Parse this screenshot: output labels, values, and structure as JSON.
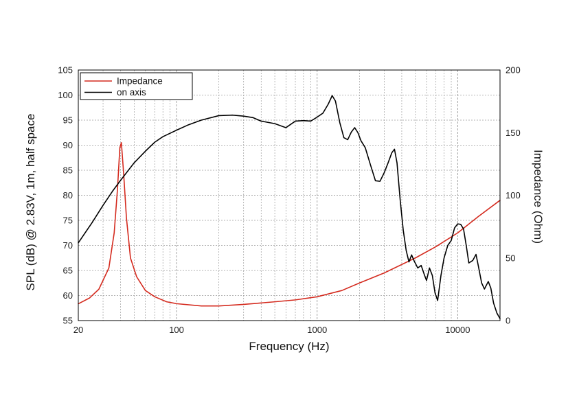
{
  "chart_data": {
    "type": "line",
    "xscale": "log",
    "xlim": [
      20,
      20000
    ],
    "ylim_left": [
      55,
      105
    ],
    "ylim_right": [
      0,
      200
    ],
    "xlabel": "Frequency (Hz)",
    "ylabel_left": "SPL (dB) @ 2.83V, 1m, half space",
    "ylabel_right": "Impedance (Ohm)",
    "x_ticks": [
      20,
      100,
      1000,
      10000
    ],
    "y_ticks_left": [
      55,
      60,
      65,
      70,
      75,
      80,
      85,
      90,
      95,
      100,
      105
    ],
    "y_ticks_right": [
      0,
      50,
      100,
      150,
      200
    ],
    "grid": true,
    "legend": {
      "position": "top-left"
    },
    "colors": {
      "impedance": "#d42a1e",
      "on_axis": "#000000",
      "grid": "#9a9a9a"
    },
    "series": [
      {
        "name": "Impedance",
        "axis": "right",
        "color": "#d42a1e",
        "points": [
          [
            20,
            13.4
          ],
          [
            24,
            18
          ],
          [
            28,
            25
          ],
          [
            33,
            42
          ],
          [
            36,
            70
          ],
          [
            38,
            105
          ],
          [
            39.5,
            138
          ],
          [
            40.5,
            142
          ],
          [
            42,
            118
          ],
          [
            44,
            82
          ],
          [
            47,
            50
          ],
          [
            52,
            35
          ],
          [
            60,
            24
          ],
          [
            70,
            19
          ],
          [
            85,
            15
          ],
          [
            100,
            13.5
          ],
          [
            150,
            11.7
          ],
          [
            200,
            11.7
          ],
          [
            300,
            12.9
          ],
          [
            500,
            15
          ],
          [
            700,
            16.5
          ],
          [
            1000,
            19
          ],
          [
            1500,
            24
          ],
          [
            2000,
            30
          ],
          [
            3000,
            38
          ],
          [
            5000,
            50
          ],
          [
            7000,
            59
          ],
          [
            10000,
            70
          ],
          [
            14000,
            83
          ],
          [
            20000,
            96
          ]
        ]
      },
      {
        "name": "on axis",
        "axis": "left",
        "color": "#000000",
        "points": [
          [
            20,
            70.5
          ],
          [
            25,
            74.5
          ],
          [
            30,
            78
          ],
          [
            35,
            80.8
          ],
          [
            40,
            83
          ],
          [
            50,
            86.5
          ],
          [
            60,
            88.8
          ],
          [
            70,
            90.6
          ],
          [
            80,
            91.7
          ],
          [
            100,
            93
          ],
          [
            120,
            94
          ],
          [
            150,
            95
          ],
          [
            200,
            95.9
          ],
          [
            250,
            96
          ],
          [
            300,
            95.8
          ],
          [
            350,
            95.5
          ],
          [
            400,
            94.8
          ],
          [
            500,
            94.3
          ],
          [
            600,
            93.5
          ],
          [
            700,
            94.8
          ],
          [
            800,
            94.9
          ],
          [
            900,
            94.8
          ],
          [
            1000,
            95.6
          ],
          [
            1100,
            96.4
          ],
          [
            1200,
            98.2
          ],
          [
            1280,
            99.9
          ],
          [
            1350,
            98.8
          ],
          [
            1450,
            94.5
          ],
          [
            1550,
            91.5
          ],
          [
            1650,
            91.1
          ],
          [
            1750,
            92.6
          ],
          [
            1850,
            93.5
          ],
          [
            1950,
            92.5
          ],
          [
            2050,
            90.9
          ],
          [
            2200,
            89.5
          ],
          [
            2400,
            86
          ],
          [
            2600,
            82.9
          ],
          [
            2800,
            82.8
          ],
          [
            3000,
            84.5
          ],
          [
            3200,
            86.5
          ],
          [
            3400,
            88.5
          ],
          [
            3550,
            89.2
          ],
          [
            3700,
            86.5
          ],
          [
            3900,
            79
          ],
          [
            4100,
            73
          ],
          [
            4300,
            69
          ],
          [
            4500,
            66.7
          ],
          [
            4700,
            68.1
          ],
          [
            4900,
            66.9
          ],
          [
            5200,
            65.5
          ],
          [
            5500,
            66
          ],
          [
            5800,
            64.1
          ],
          [
            6000,
            63
          ],
          [
            6300,
            65.5
          ],
          [
            6600,
            64
          ],
          [
            6900,
            60.5
          ],
          [
            7200,
            59
          ],
          [
            7600,
            64
          ],
          [
            8000,
            67.5
          ],
          [
            8500,
            70
          ],
          [
            9000,
            71
          ],
          [
            9500,
            73.5
          ],
          [
            10000,
            74.3
          ],
          [
            10500,
            74.2
          ],
          [
            11000,
            73.3
          ],
          [
            11500,
            70
          ],
          [
            12000,
            66.5
          ],
          [
            12800,
            67
          ],
          [
            13500,
            68.2
          ],
          [
            14000,
            66
          ],
          [
            14800,
            62.5
          ],
          [
            15500,
            61.3
          ],
          [
            16500,
            62.8
          ],
          [
            17200,
            61.5
          ],
          [
            18000,
            58.5
          ],
          [
            19000,
            56.5
          ],
          [
            20000,
            55.4
          ]
        ]
      }
    ]
  }
}
